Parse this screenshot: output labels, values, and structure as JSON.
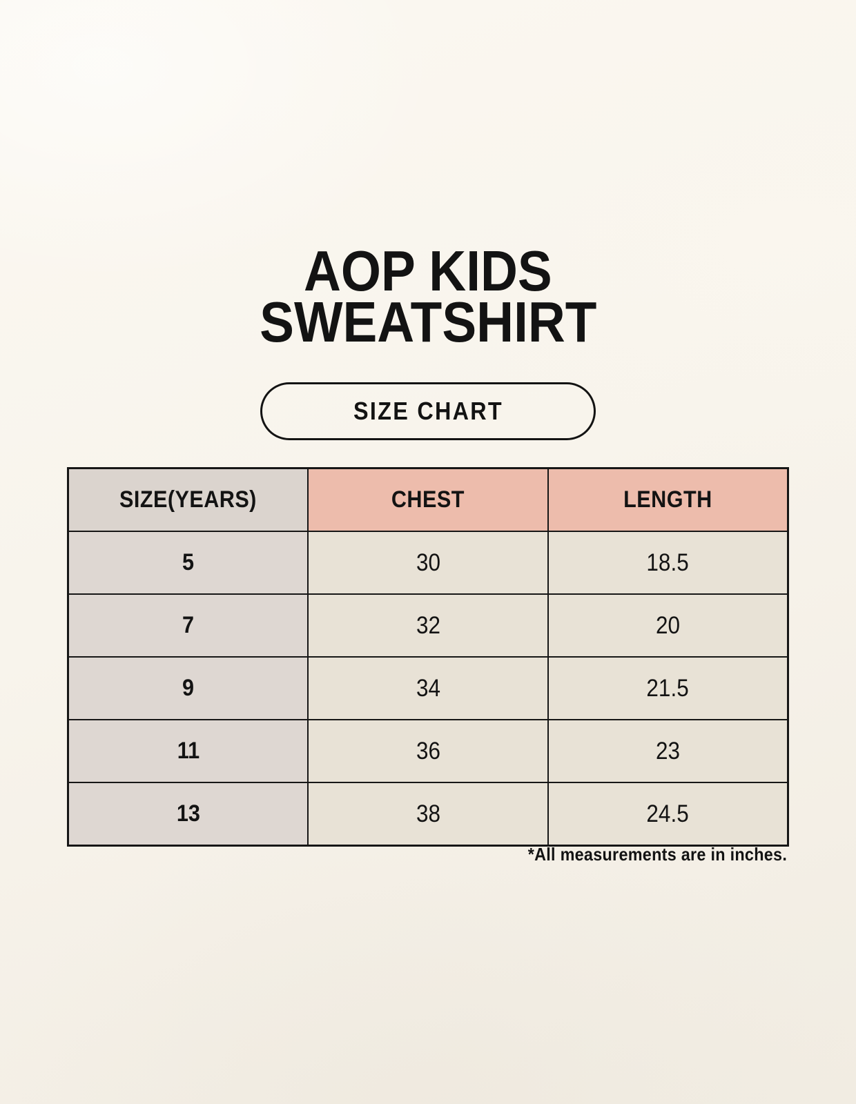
{
  "title": {
    "line1": "AOP KIDS",
    "line2": "SWEATSHIRT"
  },
  "badge": {
    "label": "SIZE CHART"
  },
  "footnote": "*All measurements are in inches.",
  "colors": {
    "background_cream": "#f7f3ea",
    "header_size_bg": "#dbd4ce",
    "header_measure_bg": "#edbcac",
    "row_size_bg": "#ded7d2",
    "row_value_bg": "#e8e2d6",
    "table_border": "#161616",
    "text": "#131313"
  },
  "chart_data": {
    "type": "table",
    "title": "AOP KIDS SWEATSHIRT",
    "subtitle": "SIZE CHART",
    "units": "inches",
    "note": "*All measurements are in inches.",
    "columns": [
      "SIZE(YEARS)",
      "CHEST",
      "LENGTH"
    ],
    "rows": [
      [
        "5",
        "30",
        "18.5"
      ],
      [
        "7",
        "32",
        "20"
      ],
      [
        "9",
        "34",
        "21.5"
      ],
      [
        "11",
        "36",
        "23"
      ],
      [
        "13",
        "38",
        "24.5"
      ]
    ]
  }
}
